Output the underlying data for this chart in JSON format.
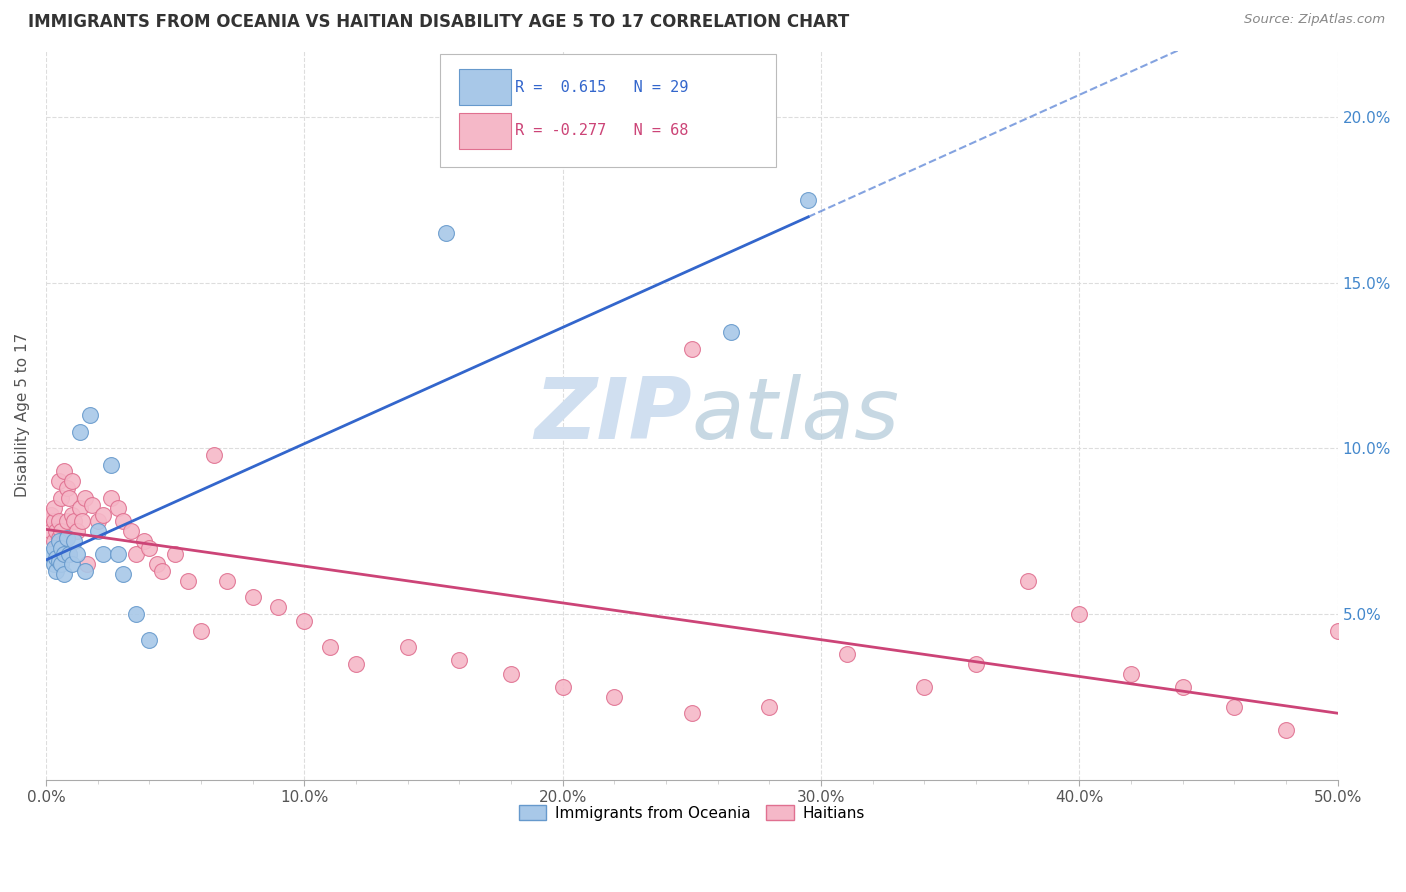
{
  "title": "IMMIGRANTS FROM OCEANIA VS HAITIAN DISABILITY AGE 5 TO 17 CORRELATION CHART",
  "source": "Source: ZipAtlas.com",
  "ylabel": "Disability Age 5 to 17",
  "xlim": [
    0.0,
    0.5
  ],
  "ylim": [
    0.0,
    0.22
  ],
  "xtick_labels": [
    "0.0%",
    "",
    "",
    "",
    "",
    "10.0%",
    "",
    "",
    "",
    "",
    "20.0%",
    "",
    "",
    "",
    "",
    "30.0%",
    "",
    "",
    "",
    "",
    "40.0%",
    "",
    "",
    "",
    "",
    "50.0%"
  ],
  "xtick_values": [
    0.0,
    0.02,
    0.04,
    0.06,
    0.08,
    0.1,
    0.12,
    0.14,
    0.16,
    0.18,
    0.2,
    0.22,
    0.24,
    0.26,
    0.28,
    0.3,
    0.32,
    0.34,
    0.36,
    0.38,
    0.4,
    0.42,
    0.44,
    0.46,
    0.48,
    0.5
  ],
  "ytick_labels": [
    "5.0%",
    "10.0%",
    "15.0%",
    "20.0%"
  ],
  "ytick_values": [
    0.05,
    0.1,
    0.15,
    0.2
  ],
  "oceania_color": "#a8c8e8",
  "oceania_edge": "#6699cc",
  "haiti_color": "#f5b8c8",
  "haiti_edge": "#e07090",
  "reg_oceania_color": "#3366cc",
  "reg_haiti_color": "#cc4477",
  "watermark_color": "#d0dff0",
  "background_color": "#ffffff",
  "grid_color": "#dddddd",
  "right_tick_color": "#4488cc",
  "left_tick_color": "#888888",
  "title_color": "#333333",
  "source_color": "#888888"
}
